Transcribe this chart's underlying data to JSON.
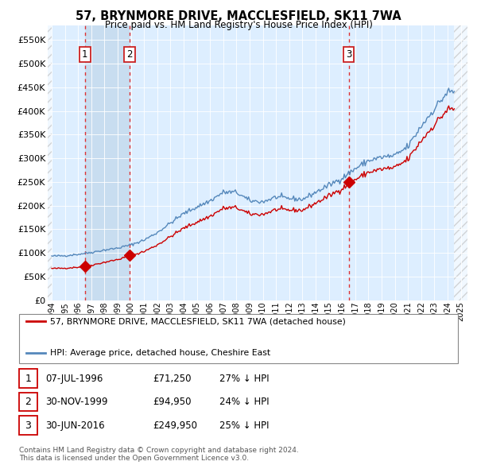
{
  "title": "57, BRYNMORE DRIVE, MACCLESFIELD, SK11 7WA",
  "subtitle": "Price paid vs. HM Land Registry's House Price Index (HPI)",
  "ylim": [
    0,
    580000
  ],
  "yticks": [
    0,
    50000,
    100000,
    150000,
    200000,
    250000,
    300000,
    350000,
    400000,
    450000,
    500000,
    550000
  ],
  "xlim_start": 1993.7,
  "xlim_end": 2025.5,
  "background_color": "#ffffff",
  "plot_bg_color": "#ddeeff",
  "grid_color": "#ffffff",
  "sale_dates": [
    1996.52,
    1999.91,
    2016.5
  ],
  "sale_prices": [
    71250,
    94950,
    249950
  ],
  "sale_labels": [
    "1",
    "2",
    "3"
  ],
  "legend_label_red": "57, BRYNMORE DRIVE, MACCLESFIELD, SK11 7WA (detached house)",
  "legend_label_blue": "HPI: Average price, detached house, Cheshire East",
  "table_data": [
    [
      "1",
      "07-JUL-1996",
      "£71,250",
      "27% ↓ HPI"
    ],
    [
      "2",
      "30-NOV-1999",
      "£94,950",
      "24% ↓ HPI"
    ],
    [
      "3",
      "30-JUN-2016",
      "£249,950",
      "25% ↓ HPI"
    ]
  ],
  "footnote": "Contains HM Land Registry data © Crown copyright and database right 2024.\nThis data is licensed under the Open Government Licence v3.0.",
  "hpi_years": [
    1994.0,
    1994.08,
    1994.17,
    1994.25,
    1994.33,
    1994.42,
    1994.5,
    1994.58,
    1994.67,
    1994.75,
    1994.83,
    1994.92,
    1995.0,
    1995.08,
    1995.17,
    1995.25,
    1995.33,
    1995.42,
    1995.5,
    1995.58,
    1995.67,
    1995.75,
    1995.83,
    1995.92,
    1996.0,
    1996.08,
    1996.17,
    1996.25,
    1996.33,
    1996.42,
    1996.5,
    1996.58,
    1996.67,
    1996.75,
    1996.83,
    1996.92,
    1997.0,
    1997.08,
    1997.17,
    1997.25,
    1997.33,
    1997.42,
    1997.5,
    1997.58,
    1997.67,
    1997.75,
    1997.83,
    1997.92,
    1998.0,
    1998.08,
    1998.17,
    1998.25,
    1998.33,
    1998.42,
    1998.5,
    1998.58,
    1998.67,
    1998.75,
    1998.83,
    1998.92,
    1999.0,
    1999.08,
    1999.17,
    1999.25,
    1999.33,
    1999.42,
    1999.5,
    1999.58,
    1999.67,
    1999.75,
    1999.83,
    1999.92,
    2000.0,
    2000.08,
    2000.17,
    2000.25,
    2000.33,
    2000.42,
    2000.5,
    2000.58,
    2000.67,
    2000.75,
    2000.83,
    2000.92,
    2001.0,
    2001.08,
    2001.17,
    2001.25,
    2001.33,
    2001.42,
    2001.5,
    2001.58,
    2001.67,
    2001.75,
    2001.83,
    2001.92,
    2002.0,
    2002.08,
    2002.17,
    2002.25,
    2002.33,
    2002.42,
    2002.5,
    2002.58,
    2002.67,
    2002.75,
    2002.83,
    2002.92,
    2003.0,
    2003.08,
    2003.17,
    2003.25,
    2003.33,
    2003.42,
    2003.5,
    2003.58,
    2003.67,
    2003.75,
    2003.83,
    2003.92,
    2004.0,
    2004.08,
    2004.17,
    2004.25,
    2004.33,
    2004.42,
    2004.5,
    2004.58,
    2004.67,
    2004.75,
    2004.83,
    2004.92,
    2005.0,
    2005.08,
    2005.17,
    2005.25,
    2005.33,
    2005.42,
    2005.5,
    2005.58,
    2005.67,
    2005.75,
    2005.83,
    2005.92,
    2006.0,
    2006.08,
    2006.17,
    2006.25,
    2006.33,
    2006.42,
    2006.5,
    2006.58,
    2006.67,
    2006.75,
    2006.83,
    2006.92,
    2007.0,
    2007.08,
    2007.17,
    2007.25,
    2007.33,
    2007.42,
    2007.5,
    2007.58,
    2007.67,
    2007.75,
    2007.83,
    2007.92,
    2008.0,
    2008.08,
    2008.17,
    2008.25,
    2008.33,
    2008.42,
    2008.5,
    2008.58,
    2008.67,
    2008.75,
    2008.83,
    2008.92,
    2009.0,
    2009.08,
    2009.17,
    2009.25,
    2009.33,
    2009.42,
    2009.5,
    2009.58,
    2009.67,
    2009.75,
    2009.83,
    2009.92,
    2010.0,
    2010.08,
    2010.17,
    2010.25,
    2010.33,
    2010.42,
    2010.5,
    2010.58,
    2010.67,
    2010.75,
    2010.83,
    2010.92,
    2011.0,
    2011.08,
    2011.17,
    2011.25,
    2011.33,
    2011.42,
    2011.5,
    2011.58,
    2011.67,
    2011.75,
    2011.83,
    2011.92,
    2012.0,
    2012.08,
    2012.17,
    2012.25,
    2012.33,
    2012.42,
    2012.5,
    2012.58,
    2012.67,
    2012.75,
    2012.83,
    2012.92,
    2013.0,
    2013.08,
    2013.17,
    2013.25,
    2013.33,
    2013.42,
    2013.5,
    2013.58,
    2013.67,
    2013.75,
    2013.83,
    2013.92,
    2014.0,
    2014.08,
    2014.17,
    2014.25,
    2014.33,
    2014.42,
    2014.5,
    2014.58,
    2014.67,
    2014.75,
    2014.83,
    2014.92,
    2015.0,
    2015.08,
    2015.17,
    2015.25,
    2015.33,
    2015.42,
    2015.5,
    2015.58,
    2015.67,
    2015.75,
    2015.83,
    2015.92,
    2016.0,
    2016.08,
    2016.17,
    2016.25,
    2016.33,
    2016.42,
    2016.5,
    2016.58,
    2016.67,
    2016.75,
    2016.83,
    2016.92,
    2017.0,
    2017.08,
    2017.17,
    2017.25,
    2017.33,
    2017.42,
    2017.5,
    2017.58,
    2017.67,
    2017.75,
    2017.83,
    2017.92,
    2018.0,
    2018.08,
    2018.17,
    2018.25,
    2018.33,
    2018.42,
    2018.5,
    2018.58,
    2018.67,
    2018.75,
    2018.83,
    2018.92,
    2019.0,
    2019.08,
    2019.17,
    2019.25,
    2019.33,
    2019.42,
    2019.5,
    2019.58,
    2019.67,
    2019.75,
    2019.83,
    2019.92,
    2020.0,
    2020.08,
    2020.17,
    2020.25,
    2020.33,
    2020.42,
    2020.5,
    2020.58,
    2020.67,
    2020.75,
    2020.83,
    2020.92,
    2021.0,
    2021.08,
    2021.17,
    2021.25,
    2021.33,
    2021.42,
    2021.5,
    2021.58,
    2021.67,
    2021.75,
    2021.83,
    2021.92,
    2022.0,
    2022.08,
    2022.17,
    2022.25,
    2022.33,
    2022.42,
    2022.5,
    2022.58,
    2022.67,
    2022.75,
    2022.83,
    2022.92,
    2023.0,
    2023.08,
    2023.17,
    2023.25,
    2023.33,
    2023.42,
    2023.5,
    2023.58,
    2023.67,
    2023.75,
    2023.83,
    2023.92,
    2024.0,
    2024.08,
    2024.17,
    2024.25,
    2024.33,
    2024.42,
    2024.5
  ],
  "red_color": "#cc0000",
  "blue_color": "#5588bb",
  "highlight_color": "#c8ddf0",
  "dashed_line_color": "#dd3333"
}
